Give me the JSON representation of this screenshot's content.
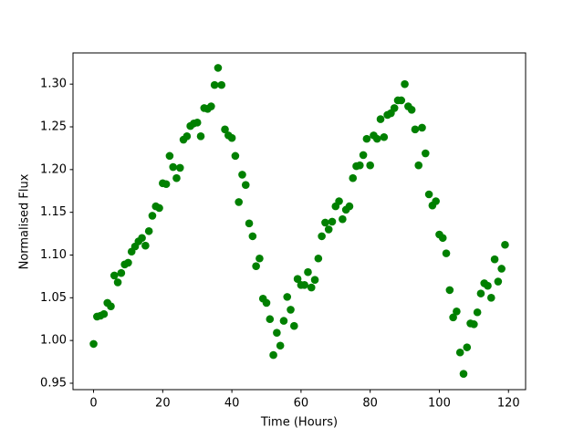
{
  "chart_data": {
    "type": "scatter",
    "xlabel": "Time (Hours)",
    "ylabel": "Normalised Flux",
    "color": "#008000",
    "x": [
      0,
      1,
      2,
      3,
      4,
      5,
      6,
      7,
      8,
      9,
      10,
      11,
      12,
      13,
      14,
      15,
      16,
      17,
      18,
      19,
      20,
      21,
      22,
      23,
      24,
      25,
      26,
      27,
      28,
      29,
      30,
      31,
      32,
      33,
      34,
      35,
      36,
      37,
      38,
      39,
      40,
      41,
      42,
      43,
      44,
      45,
      46,
      47,
      48,
      49,
      50,
      51,
      52,
      53,
      54,
      55,
      56,
      57,
      58,
      59,
      60,
      61,
      62,
      63,
      64,
      65,
      66,
      67,
      68,
      69,
      70,
      71,
      72,
      73,
      74,
      75,
      76,
      77,
      78,
      79,
      80,
      81,
      82,
      83,
      84,
      85,
      86,
      87,
      88,
      89,
      90,
      91,
      92,
      93,
      94,
      95,
      96,
      97,
      98,
      99,
      100,
      101,
      102,
      103,
      104,
      105,
      106,
      107,
      108,
      109,
      110,
      111,
      112,
      113,
      114,
      115,
      116,
      117,
      118,
      119
    ],
    "values": [
      0.996,
      1.028,
      1.029,
      1.031,
      1.044,
      1.04,
      1.076,
      1.068,
      1.079,
      1.089,
      1.091,
      1.104,
      1.11,
      1.116,
      1.12,
      1.111,
      1.128,
      1.146,
      1.157,
      1.155,
      1.184,
      1.183,
      1.216,
      1.203,
      1.19,
      1.202,
      1.235,
      1.239,
      1.251,
      1.254,
      1.255,
      1.239,
      1.272,
      1.271,
      1.274,
      1.299,
      1.319,
      1.299,
      1.247,
      1.24,
      1.237,
      1.216,
      1.162,
      1.194,
      1.182,
      1.137,
      1.122,
      1.087,
      1.096,
      1.049,
      1.044,
      1.025,
      0.983,
      1.009,
      0.994,
      1.023,
      1.051,
      1.036,
      1.017,
      1.072,
      1.065,
      1.065,
      1.08,
      1.062,
      1.071,
      1.096,
      1.122,
      1.138,
      1.13,
      1.139,
      1.157,
      1.163,
      1.142,
      1.153,
      1.157,
      1.19,
      1.204,
      1.205,
      1.217,
      1.236,
      1.205,
      1.24,
      1.236,
      1.259,
      1.238,
      1.264,
      1.266,
      1.272,
      1.281,
      1.281,
      1.3,
      1.274,
      1.27,
      1.247,
      1.205,
      1.249,
      1.219,
      1.171,
      1.158,
      1.163,
      1.124,
      1.12,
      1.102,
      1.059,
      1.027,
      1.034,
      0.986,
      0.961,
      0.992,
      1.02,
      1.019,
      1.033,
      1.055,
      1.067,
      1.064,
      1.05,
      1.095,
      1.069,
      1.084,
      1.112
    ],
    "xlim": [
      -5.95,
      124.95
    ],
    "ylim": [
      0.9425,
      1.3365
    ],
    "xticks": [
      0,
      20,
      40,
      60,
      80,
      100,
      120
    ],
    "yticks": [
      0.95,
      {
        "value": 1.0,
        "label": "1.00"
      },
      1.05,
      {
        "value": 1.1,
        "label": "1.10"
      },
      1.15,
      {
        "value": 1.2,
        "label": "1.20"
      },
      1.25,
      {
        "value": 1.3,
        "label": "1.30"
      }
    ],
    "grid": false
  }
}
